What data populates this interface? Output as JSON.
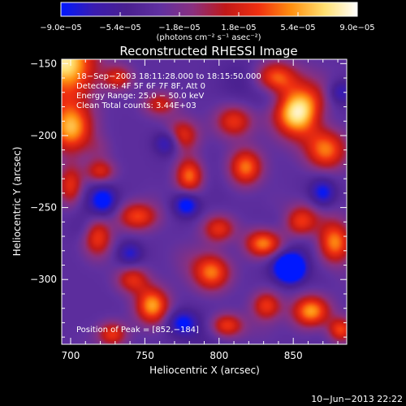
{
  "chart_data": {
    "type": "heatmap",
    "title": "Reconstructed RHESSI Image",
    "xlabel": "Heliocentric X (arcsec)",
    "ylabel": "Heliocentric Y (arcsec)",
    "xlim": [
      694,
      886
    ],
    "ylim": [
      -345,
      -147
    ],
    "x_ticks": [
      700,
      750,
      800,
      850
    ],
    "x_tick_labels": [
      "700",
      "750",
      "800",
      "850"
    ],
    "y_ticks": [
      -150,
      -200,
      -250,
      -300
    ],
    "y_tick_labels": [
      "−150",
      "−200",
      "−250",
      "−300"
    ],
    "colorbar": {
      "range": [
        -9e-05,
        9e-05
      ],
      "tick_values": [
        -9e-05,
        -5.4e-05,
        -1.8e-05,
        1.8e-05,
        5.4e-05,
        9e-05
      ],
      "tick_labels": [
        "−9.0e−05",
        "−5.4e−05",
        "−1.8e−05",
        "1.8e−05",
        "5.4e−05",
        "9.0e−05"
      ],
      "unit_label": "(photons cm⁻² s⁻¹ asec⁻²)",
      "colors": [
        "#0018ff",
        "#3a1cb0",
        "#4a2090",
        "#6030a0",
        "#8a3080",
        "#c01818",
        "#f03010",
        "#ff9010",
        "#ffe070",
        "#ffffff"
      ]
    },
    "annotations": {
      "time": "18−Sep−2003 18:11:28.000 to 18:15:50.000",
      "detectors": "Detectors: 4F 5F 6F 7F 8F, Att 0",
      "energy": "Energy Range: 25.0 − 50.0 keV",
      "clean": "Clean    Total counts: 3.44E+03",
      "peak": "Position of Peak = [852,−184]"
    },
    "peak": [
      852,
      -184
    ],
    "blobs": [
      {
        "x": 696,
        "y": -150,
        "v": 1.0,
        "sx": 14,
        "sy": 18
      },
      {
        "x": 700,
        "y": -195,
        "v": 0.75,
        "sx": 10,
        "sy": 12
      },
      {
        "x": 852,
        "y": -184,
        "v": 1.0,
        "sx": 11,
        "sy": 12
      },
      {
        "x": 838,
        "y": -160,
        "v": 0.7,
        "sx": 10,
        "sy": 8
      },
      {
        "x": 872,
        "y": -210,
        "v": 0.65,
        "sx": 10,
        "sy": 10
      },
      {
        "x": 780,
        "y": -228,
        "v": 0.8,
        "sx": 7,
        "sy": 9
      },
      {
        "x": 775,
        "y": -200,
        "v": 0.55,
        "sx": 8,
        "sy": 8
      },
      {
        "x": 810,
        "y": -190,
        "v": 0.55,
        "sx": 9,
        "sy": 8
      },
      {
        "x": 818,
        "y": -222,
        "v": 0.7,
        "sx": 8,
        "sy": 9
      },
      {
        "x": 745,
        "y": -256,
        "v": 0.6,
        "sx": 10,
        "sy": 7
      },
      {
        "x": 718,
        "y": -270,
        "v": 0.6,
        "sx": 7,
        "sy": 10
      },
      {
        "x": 755,
        "y": -318,
        "v": 0.8,
        "sx": 8,
        "sy": 9
      },
      {
        "x": 742,
        "y": -300,
        "v": 0.6,
        "sx": 8,
        "sy": 7
      },
      {
        "x": 728,
        "y": -338,
        "v": 0.55,
        "sx": 7,
        "sy": 6
      },
      {
        "x": 795,
        "y": -295,
        "v": 0.7,
        "sx": 9,
        "sy": 9
      },
      {
        "x": 800,
        "y": -265,
        "v": 0.55,
        "sx": 8,
        "sy": 7
      },
      {
        "x": 830,
        "y": -275,
        "v": 0.75,
        "sx": 9,
        "sy": 7
      },
      {
        "x": 855,
        "y": -260,
        "v": 0.6,
        "sx": 8,
        "sy": 8
      },
      {
        "x": 878,
        "y": -275,
        "v": 0.7,
        "sx": 8,
        "sy": 10
      },
      {
        "x": 862,
        "y": -322,
        "v": 0.8,
        "sx": 9,
        "sy": 8
      },
      {
        "x": 832,
        "y": -318,
        "v": 0.55,
        "sx": 7,
        "sy": 7
      },
      {
        "x": 882,
        "y": -335,
        "v": 0.6,
        "sx": 6,
        "sy": 6
      },
      {
        "x": 805,
        "y": -332,
        "v": 0.6,
        "sx": 8,
        "sy": 6
      },
      {
        "x": 700,
        "y": -235,
        "v": 0.55,
        "sx": 6,
        "sy": 10
      },
      {
        "x": 720,
        "y": -225,
        "v": 0.5,
        "sx": 7,
        "sy": 6
      },
      {
        "x": 760,
        "y": -178,
        "v": 0.45,
        "sx": 8,
        "sy": 6
      },
      {
        "x": 732,
        "y": -160,
        "v": 0.45,
        "sx": 7,
        "sy": 6
      },
      {
        "x": 848,
        "y": -292,
        "v": -1.3,
        "sx": 6,
        "sy": 6
      },
      {
        "x": 778,
        "y": -248,
        "v": -0.6,
        "sx": 6,
        "sy": 6
      },
      {
        "x": 765,
        "y": -205,
        "v": -0.5,
        "sx": 6,
        "sy": 6
      },
      {
        "x": 722,
        "y": -245,
        "v": -0.5,
        "sx": 6,
        "sy": 7
      },
      {
        "x": 775,
        "y": -330,
        "v": -0.5,
        "sx": 7,
        "sy": 6
      },
      {
        "x": 740,
        "y": -282,
        "v": -0.4,
        "sx": 6,
        "sy": 6
      },
      {
        "x": 870,
        "y": -240,
        "v": -0.5,
        "sx": 6,
        "sy": 7
      },
      {
        "x": 882,
        "y": -170,
        "v": -0.4,
        "sx": 6,
        "sy": 6
      }
    ]
  },
  "footer": {
    "timestamp": "10−Jun−2013 22:22"
  }
}
